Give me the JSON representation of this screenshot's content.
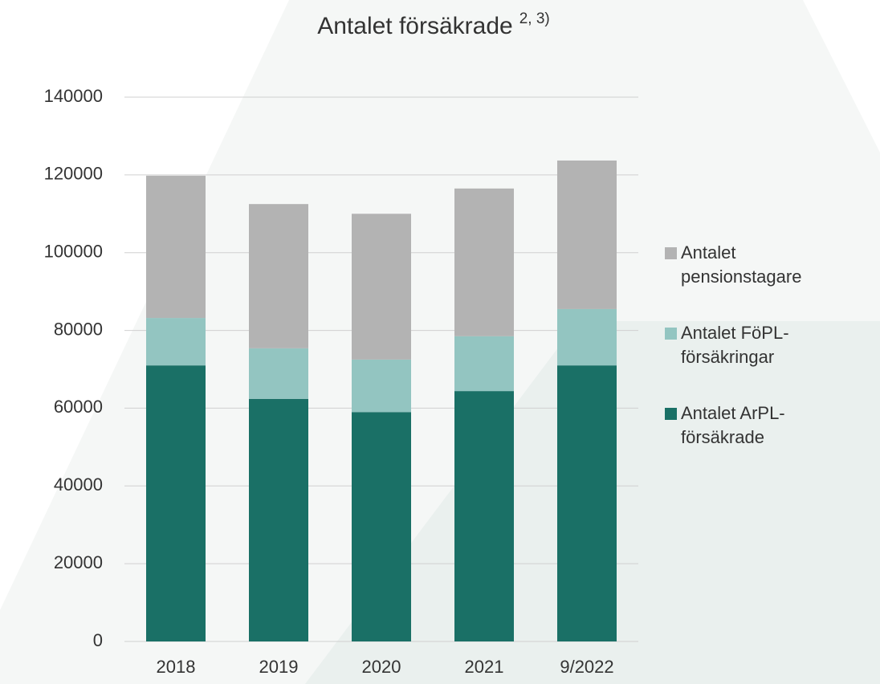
{
  "chart_data": {
    "type": "stacked_bar",
    "title": "Antalet försäkrade",
    "title_superscript": "2, 3)",
    "categories": [
      "2018",
      "2019",
      "2020",
      "2021",
      "9/2022"
    ],
    "series": [
      {
        "name": "Antalet ArPL-försäkrade",
        "color": "#1a7066",
        "values": [
          71000,
          62400,
          59000,
          64400,
          71000
        ]
      },
      {
        "name": "Antalet FöPL-försäkringar",
        "color": "#93c5c1",
        "values": [
          12200,
          13000,
          13500,
          14100,
          14500
        ]
      },
      {
        "name": "Antalet pensionstagare",
        "color": "#b3b3b3",
        "values": [
          36600,
          37100,
          37500,
          38000,
          38200
        ]
      }
    ],
    "ylim": [
      0,
      140000
    ],
    "yticks": [
      0,
      20000,
      40000,
      60000,
      80000,
      100000,
      120000,
      140000
    ],
    "grid": true
  }
}
